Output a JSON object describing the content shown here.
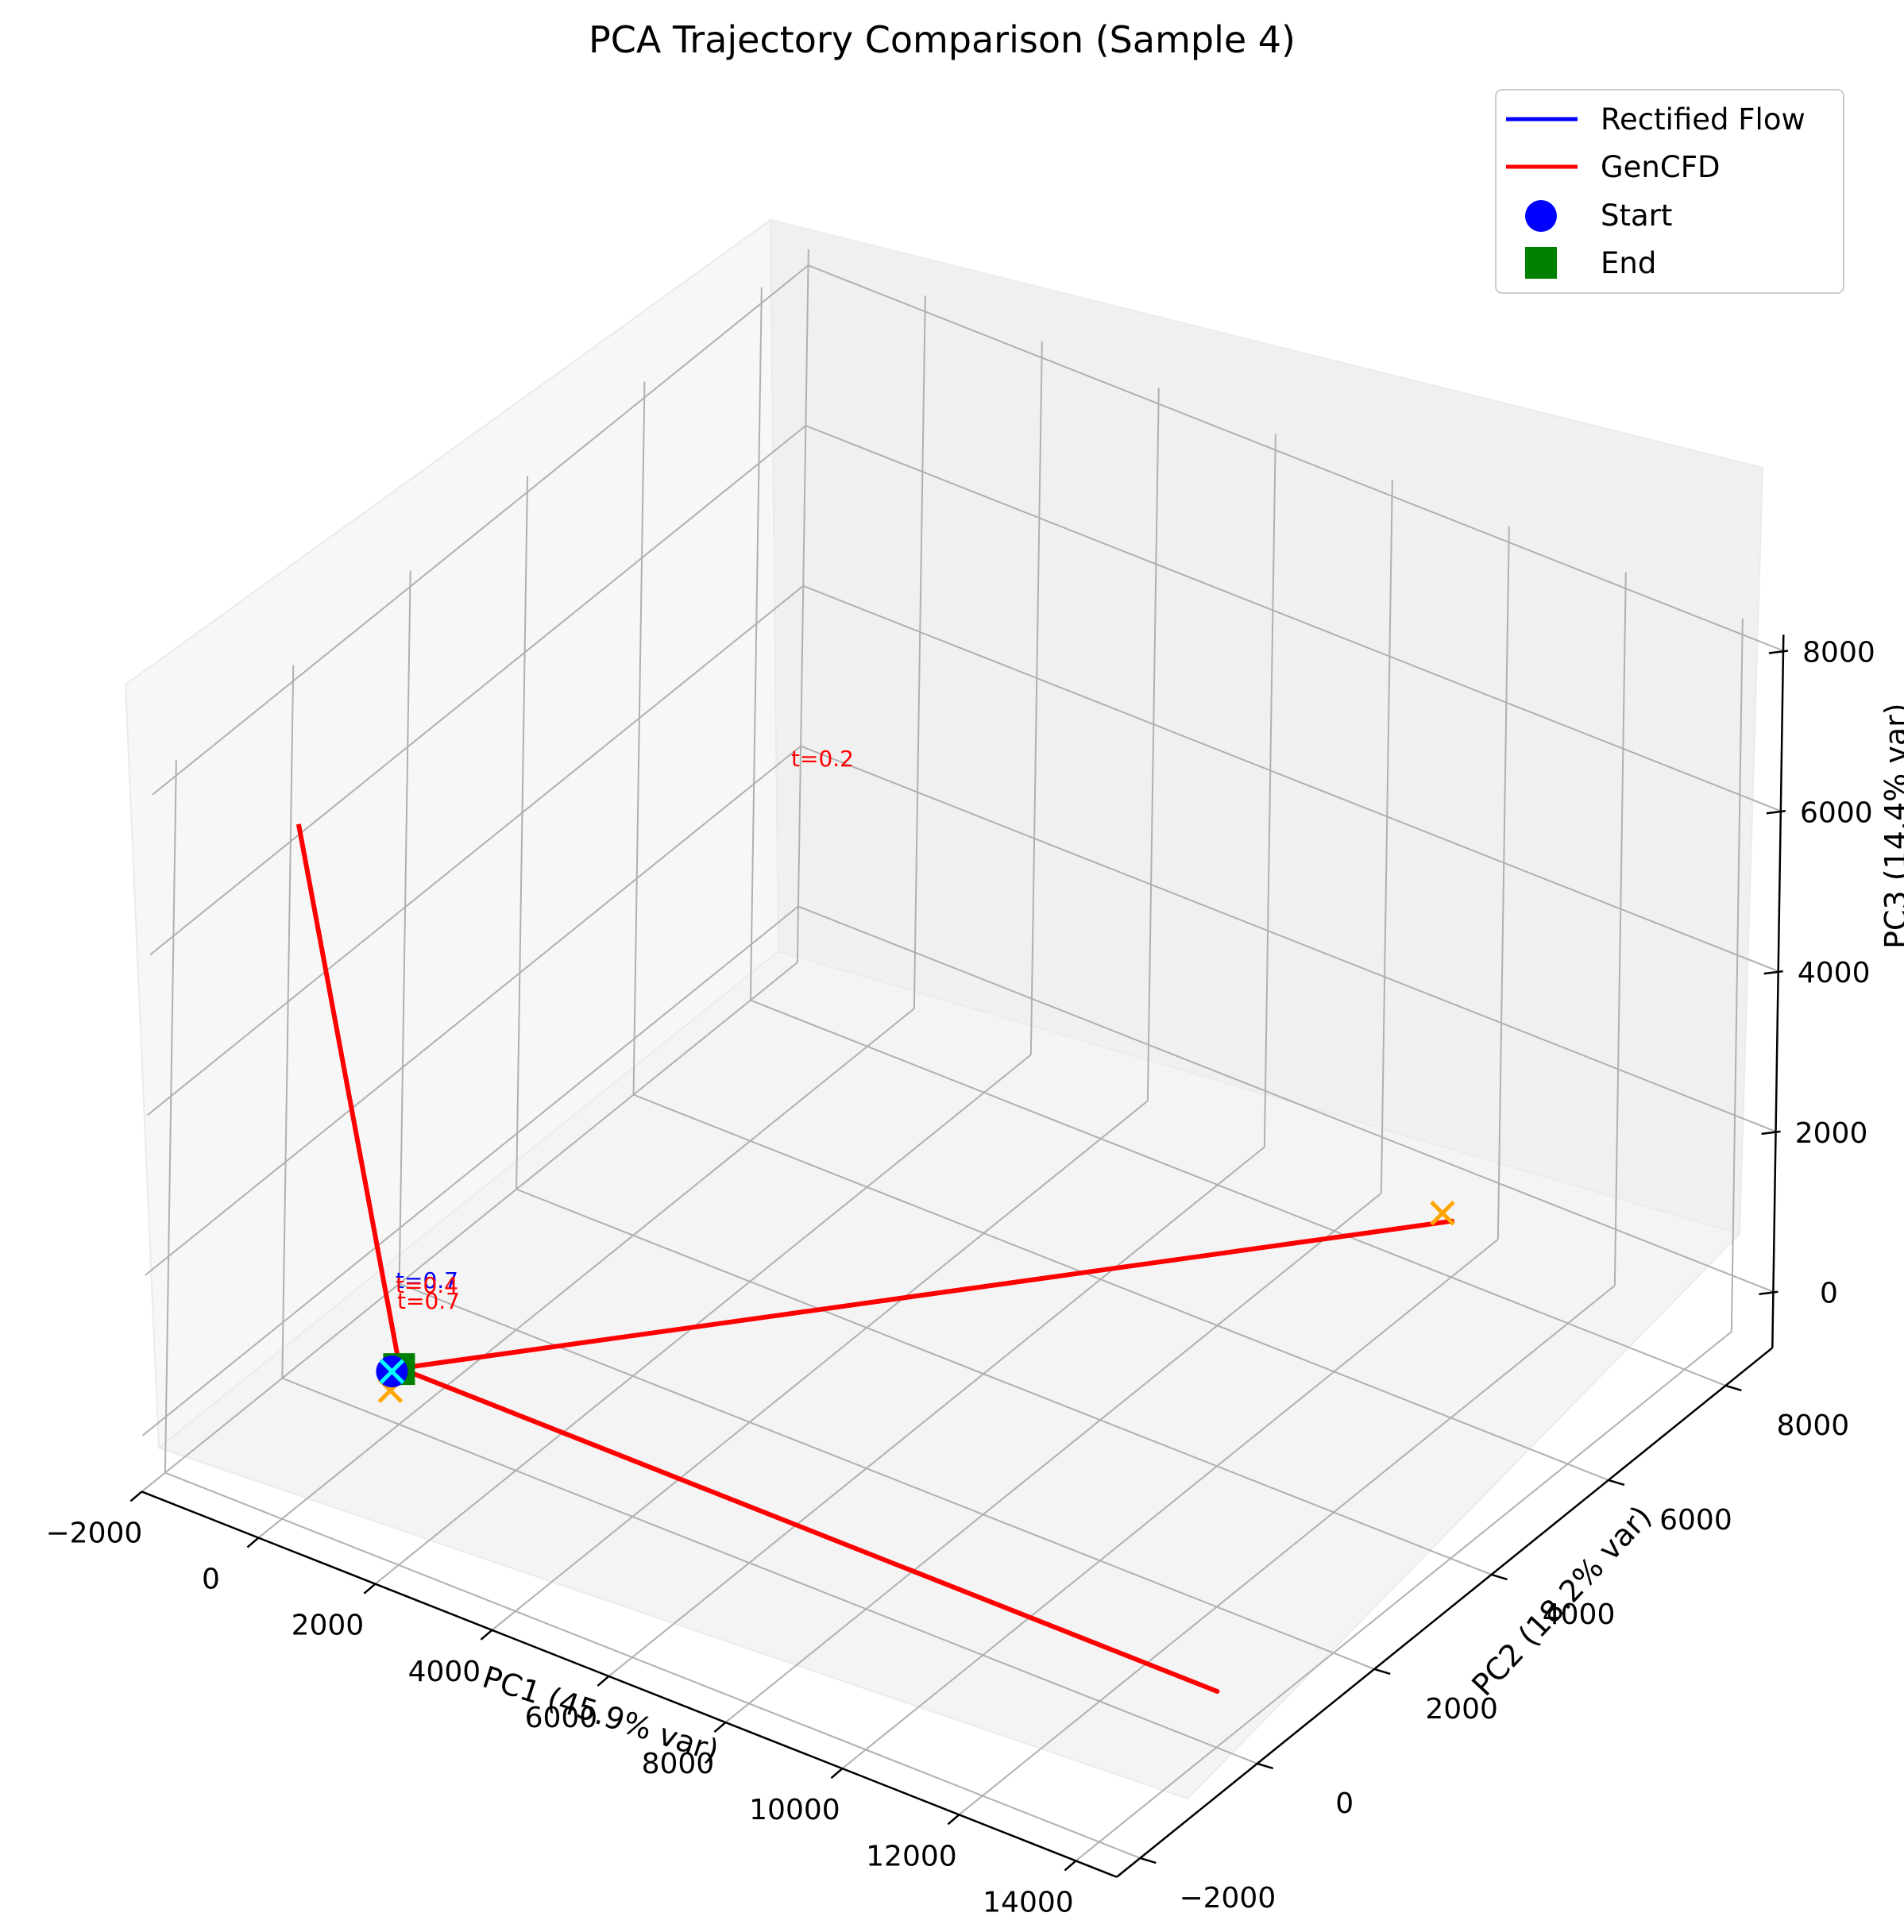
{
  "chart_data": {
    "type": "line3d",
    "title": "PCA Trajectory Comparison (Sample 4)",
    "xlabel": "PC1 (45.9% var)",
    "ylabel": "PC2 (18.2% var)",
    "zlabel": "PC3 (14.4% var)",
    "x_ticks": [
      "−2000",
      "0",
      "2000",
      "4000",
      "6000",
      "8000",
      "10000",
      "12000",
      "14000"
    ],
    "y_ticks": [
      "−2000",
      "0",
      "2000",
      "4000",
      "6000",
      "8000"
    ],
    "z_ticks": [
      "0",
      "2000",
      "4000",
      "6000",
      "8000"
    ],
    "grid": true,
    "legend_position": "top-right",
    "legend": [
      {
        "label": "Rectified Flow",
        "kind": "line",
        "color": "#0000ff"
      },
      {
        "label": "GenCFD",
        "kind": "line",
        "color": "#ff0000"
      },
      {
        "label": "Start",
        "kind": "circle",
        "color": "#0000ff"
      },
      {
        "label": "End",
        "kind": "square",
        "color": "#008000"
      }
    ],
    "series": [
      {
        "name": "GenCFD",
        "color": "#ff0000",
        "note_points": "approximate PC1, PC2, PC3 values",
        "x": [
          0,
          14000,
          0,
          10000,
          0,
          100
        ],
        "y": [
          0,
          0,
          0,
          8000,
          0,
          -2000
        ],
        "z": [
          0,
          0,
          0,
          0,
          0,
          8000
        ]
      }
    ],
    "annotations": [
      {
        "text": "t=0.2",
        "color": "#ff0000"
      },
      {
        "text": "t=0.7",
        "color": "#0000ff"
      },
      {
        "text": "t=0.4",
        "color": "#ff0000"
      },
      {
        "text": "t=0.7",
        "color": "#ff0000"
      }
    ]
  }
}
